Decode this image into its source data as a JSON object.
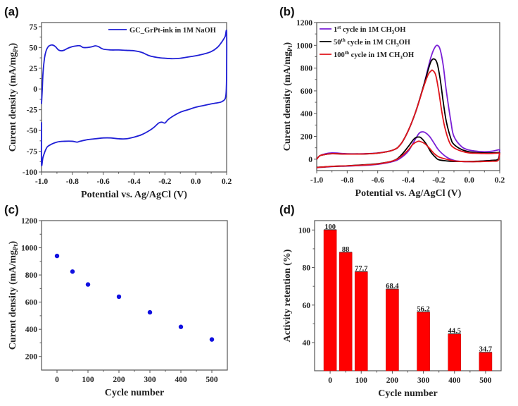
{
  "chart_data": [
    {
      "id": "a",
      "panel_label": "(a)",
      "type": "line",
      "title": "",
      "xlabel": "Potential vs. Ag/AgCl (V)",
      "ylabel": "Curent density (mA/mg",
      "ylabel_sub": "Pt",
      "ylabel_end": ")",
      "xlim": [
        -1.0,
        0.2
      ],
      "ylim": [
        -100,
        80
      ],
      "xticks": [
        -1.0,
        -0.8,
        -0.6,
        -0.4,
        -0.2,
        0.0,
        0.2
      ],
      "xtick_labels": [
        "-1.0",
        "-0.8",
        "-0.6",
        "-0.4",
        "-0.2",
        "0.0",
        "0.2"
      ],
      "yticks": [
        -100,
        -75,
        -50,
        -25,
        0,
        25,
        50,
        75
      ],
      "ytick_labels": [
        "-100",
        "-75",
        "-50",
        "-25",
        "0",
        "25",
        "50",
        "75"
      ],
      "legend_position": "top-right",
      "series": [
        {
          "name": "GC_GrPt-ink in 1M NaOH",
          "color": "#1f1fd6",
          "x": [
            -1.0,
            -0.995,
            -0.99,
            -0.98,
            -0.97,
            -0.96,
            -0.95,
            -0.93,
            -0.91,
            -0.89,
            -0.87,
            -0.85,
            -0.83,
            -0.8,
            -0.77,
            -0.75,
            -0.73,
            -0.7,
            -0.67,
            -0.65,
            -0.63,
            -0.6,
            -0.55,
            -0.5,
            -0.45,
            -0.4,
            -0.35,
            -0.3,
            -0.25,
            -0.2,
            -0.15,
            -0.1,
            -0.05,
            0.0,
            0.05,
            0.1,
            0.14,
            0.17,
            0.19,
            0.2,
            0.2,
            0.198,
            0.195,
            0.19,
            0.18,
            0.16,
            0.13,
            0.1,
            0.05,
            0.0,
            -0.05,
            -0.1,
            -0.15,
            -0.18,
            -0.2,
            -0.22,
            -0.24,
            -0.27,
            -0.3,
            -0.35,
            -0.4,
            -0.45,
            -0.5,
            -0.55,
            -0.6,
            -0.65,
            -0.7,
            -0.75,
            -0.77,
            -0.8,
            -0.85,
            -0.9,
            -0.95,
            -0.97,
            -0.99,
            -1.0,
            -1.0
          ],
          "y": [
            -18,
            0,
            20,
            38,
            46,
            50,
            52,
            53,
            51,
            47,
            46,
            47,
            49,
            51,
            52,
            52,
            50,
            50,
            51,
            52,
            51,
            48,
            47,
            47,
            46.5,
            46,
            44,
            40,
            38,
            37,
            36.5,
            37,
            38.5,
            40,
            42,
            45,
            50,
            57,
            63,
            68,
            20,
            0,
            -8,
            -12,
            -14,
            -16,
            -17,
            -18,
            -20,
            -22,
            -25,
            -28,
            -33,
            -37,
            -41,
            -40,
            -41,
            -46,
            -50,
            -55,
            -58,
            -60,
            -60,
            -59,
            -59,
            -60,
            -61,
            -63,
            -64,
            -63,
            -63,
            -64,
            -68,
            -72,
            -82,
            -90,
            -40
          ]
        }
      ]
    },
    {
      "id": "b",
      "panel_label": "(b)",
      "type": "line",
      "title": "",
      "xlabel": "Potential vs. Ag/AgCl (V)",
      "ylabel": "Curent density (mA/mg",
      "ylabel_sub": "Pt",
      "ylabel_end": ")",
      "xlim": [
        -1.0,
        0.2
      ],
      "ylim": [
        -100,
        1200
      ],
      "xticks": [
        -1.0,
        -0.8,
        -0.6,
        -0.4,
        -0.2,
        0.0,
        0.2
      ],
      "xtick_labels": [
        "-1.0",
        "-0.8",
        "-0.6",
        "-0.4",
        "-0.2",
        "0.0",
        "0.2"
      ],
      "yticks": [
        0,
        200,
        400,
        600,
        800,
        1000,
        1200
      ],
      "ytick_labels": [
        "0",
        "200",
        "400",
        "600",
        "800",
        "1000",
        "1200"
      ],
      "legend_position": "top-left",
      "series": [
        {
          "name": "1st cycle in 1M CH3OH",
          "legend_parts": [
            "1",
            "st",
            " cycle in 1M CH",
            "3",
            "OH"
          ],
          "color": "#7a1fd6",
          "forward_peak": {
            "x": -0.21,
            "y": 1000
          },
          "backward_peak": {
            "x": -0.31,
            "y": 240
          },
          "forward": {
            "x": [
              -1.0,
              -0.98,
              -0.95,
              -0.9,
              -0.8,
              -0.7,
              -0.6,
              -0.5,
              -0.45,
              -0.4,
              -0.35,
              -0.3,
              -0.27,
              -0.25,
              -0.23,
              -0.21,
              -0.19,
              -0.17,
              -0.15,
              -0.12,
              -0.1,
              -0.05,
              0.0,
              0.05,
              0.1,
              0.15,
              0.2
            ],
            "y": [
              0,
              30,
              45,
              55,
              48,
              48,
              55,
              80,
              130,
              250,
              420,
              640,
              800,
              900,
              970,
              1000,
              960,
              820,
              600,
              330,
              200,
              110,
              80,
              70,
              65,
              70,
              85
            ]
          },
          "backward": {
            "x": [
              0.2,
              0.19,
              0.15,
              0.1,
              0.05,
              0.0,
              -0.05,
              -0.1,
              -0.15,
              -0.2,
              -0.23,
              -0.26,
              -0.29,
              -0.31,
              -0.33,
              -0.36,
              -0.4,
              -0.45,
              -0.5,
              -0.6,
              -0.7,
              -0.8,
              -0.9,
              -0.95,
              -0.98,
              -1.0
            ],
            "y": [
              85,
              0,
              -10,
              -15,
              -20,
              -22,
              -20,
              -10,
              20,
              80,
              140,
              200,
              235,
              240,
              225,
              160,
              70,
              10,
              -20,
              -45,
              -55,
              -60,
              -65,
              -70,
              -72,
              -75
            ]
          }
        },
        {
          "name": "50th cycle in 1M CH3OH",
          "legend_parts": [
            "50",
            "th",
            " cycle in 1M CH",
            "3",
            "OH"
          ],
          "color": "#000000",
          "forward_peak": {
            "x": -0.23,
            "y": 880
          },
          "backward_peak": {
            "x": -0.33,
            "y": 195
          },
          "forward": {
            "x": [
              -1.0,
              -0.98,
              -0.95,
              -0.9,
              -0.8,
              -0.7,
              -0.6,
              -0.5,
              -0.45,
              -0.4,
              -0.35,
              -0.3,
              -0.27,
              -0.25,
              -0.23,
              -0.21,
              -0.19,
              -0.17,
              -0.15,
              -0.12,
              -0.1,
              -0.05,
              0.0,
              0.05,
              0.1,
              0.15,
              0.2
            ],
            "y": [
              0,
              30,
              40,
              48,
              45,
              46,
              53,
              80,
              130,
              250,
              420,
              640,
              780,
              860,
              880,
              840,
              700,
              500,
              330,
              180,
              130,
              85,
              65,
              58,
              55,
              55,
              60
            ]
          },
          "backward": {
            "x": [
              0.2,
              0.19,
              0.15,
              0.1,
              0.05,
              0.0,
              -0.05,
              -0.1,
              -0.15,
              -0.2,
              -0.22,
              -0.25,
              -0.28,
              -0.31,
              -0.33,
              -0.36,
              -0.4,
              -0.45,
              -0.5,
              -0.6,
              -0.7,
              -0.8,
              -0.9,
              -0.95,
              -0.98,
              -1.0
            ],
            "y": [
              60,
              0,
              -10,
              -15,
              -18,
              -20,
              -20,
              -20,
              -15,
              -5,
              15,
              60,
              130,
              180,
              195,
              180,
              110,
              30,
              -15,
              -40,
              -50,
              -58,
              -63,
              -68,
              -70,
              -72
            ]
          }
        },
        {
          "name": "100th cycle in 1M CH3OH",
          "legend_parts": [
            "100",
            "th",
            " cycle in 1M CH",
            "3",
            "OH"
          ],
          "color": "#e0151b",
          "forward_peak": {
            "x": -0.24,
            "y": 780
          },
          "backward_peak": {
            "x": -0.34,
            "y": 155
          },
          "forward": {
            "x": [
              -1.0,
              -0.98,
              -0.95,
              -0.9,
              -0.8,
              -0.7,
              -0.6,
              -0.5,
              -0.45,
              -0.4,
              -0.35,
              -0.3,
              -0.27,
              -0.25,
              -0.24,
              -0.22,
              -0.2,
              -0.18,
              -0.16,
              -0.13,
              -0.1,
              -0.05,
              0.0,
              0.05,
              0.1,
              0.15,
              0.2
            ],
            "y": [
              0,
              30,
              40,
              48,
              45,
              46,
              53,
              80,
              130,
              250,
              420,
              630,
              740,
              775,
              780,
              740,
              600,
              420,
              280,
              150,
              100,
              70,
              55,
              52,
              50,
              50,
              55
            ]
          },
          "backward": {
            "x": [
              0.2,
              0.19,
              0.15,
              0.1,
              0.05,
              0.0,
              -0.05,
              -0.1,
              -0.15,
              -0.2,
              -0.23,
              -0.26,
              -0.29,
              -0.32,
              -0.34,
              -0.37,
              -0.4,
              -0.45,
              -0.5,
              -0.6,
              -0.7,
              -0.8,
              -0.9,
              -0.95,
              -0.98,
              -1.0
            ],
            "y": [
              55,
              -10,
              -18,
              -20,
              -22,
              -22,
              -20,
              -15,
              0,
              20,
              50,
              95,
              135,
              155,
              155,
              130,
              80,
              20,
              -15,
              -42,
              -52,
              -58,
              -63,
              -68,
              -70,
              -75
            ]
          }
        }
      ]
    },
    {
      "id": "c",
      "panel_label": "(c)",
      "type": "scatter",
      "title": "",
      "xlabel": "Cycle number",
      "ylabel": "Curent density (mA/mg",
      "ylabel_sub": "Pt",
      "ylabel_end": ")",
      "xlim": [
        -50,
        550
      ],
      "ylim": [
        100,
        1200
      ],
      "xticks": [
        0,
        100,
        200,
        300,
        400,
        500
      ],
      "xtick_labels": [
        "0",
        "100",
        "200",
        "300",
        "400",
        "500"
      ],
      "yticks": [
        200,
        400,
        600,
        800,
        1000,
        1200
      ],
      "ytick_labels": [
        "200",
        "400",
        "600",
        "800",
        "1000",
        "1200"
      ],
      "series": [
        {
          "name": "Current density",
          "color": "#1010e0",
          "x": [
            0,
            50,
            100,
            200,
            300,
            400,
            500
          ],
          "y": [
            940,
            825,
            730,
            640,
            525,
            418,
            325
          ]
        }
      ]
    },
    {
      "id": "d",
      "panel_label": "(d)",
      "type": "bar",
      "title": "",
      "xlabel": "Cycle number",
      "ylabel": "Activity retention (%)",
      "xlim": [
        -50,
        550
      ],
      "ylim": [
        25,
        105
      ],
      "xticks": [
        0,
        100,
        200,
        300,
        400,
        500
      ],
      "xtick_labels": [
        "0",
        "100",
        "200",
        "300",
        "400",
        "500"
      ],
      "yticks": [
        40,
        60,
        80,
        100
      ],
      "ytick_labels": [
        "40",
        "60",
        "80",
        "100"
      ],
      "bar_color": "#ff0000",
      "categories": [
        0,
        50,
        100,
        200,
        300,
        400,
        500
      ],
      "values": [
        100,
        88,
        77.7,
        68.4,
        56.2,
        44.5,
        34.7
      ],
      "value_labels": [
        "100",
        "88",
        "77.7",
        "68.4",
        "56.2",
        "44.5",
        "34.7"
      ]
    }
  ]
}
